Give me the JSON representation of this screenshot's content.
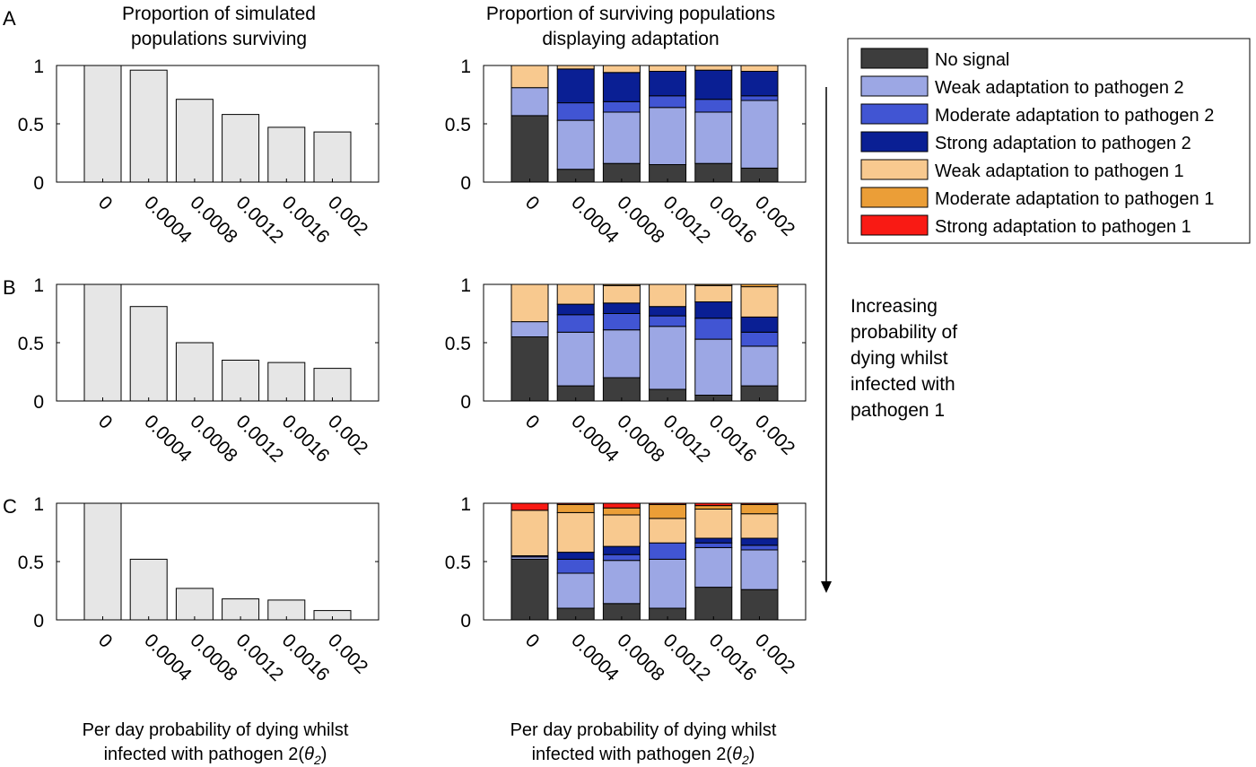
{
  "colors": {
    "survival_bar": "#e6e6e6",
    "no_signal": "#3d3d3d",
    "weak_p2": "#9ca7e4",
    "moderate_p2": "#4155d3",
    "strong_p2": "#0a1f94",
    "weak_p1": "#f8c98f",
    "moderate_p1": "#eb9e37",
    "strong_p1": "#f91a14"
  },
  "chart_data": {
    "type": "bar",
    "categories": [
      "0",
      "0.0004",
      "0.0008",
      "0.0012",
      "0.0016",
      "0.002"
    ],
    "y_ticks": [
      "0",
      "0.5",
      "1"
    ],
    "ylim": [
      0,
      1
    ],
    "column_titles": {
      "left": [
        "Proportion of simulated",
        "populations surviving"
      ],
      "right": [
        "Proportion of surviving populations",
        "displaying adaptation"
      ]
    },
    "xlabel": {
      "line1": "Per day probability of dying whilst",
      "line2_prefix": "infected with pathogen 2(",
      "symbol": "θ",
      "subscript": "2",
      "line2_suffix": ")"
    },
    "annotation": [
      "Increasing",
      "probability of",
      "dying whilst",
      "infected with",
      "pathogen 1"
    ],
    "legend": [
      {
        "label": "No signal",
        "color_key": "no_signal"
      },
      {
        "label": "Weak adaptation to pathogen 2",
        "color_key": "weak_p2"
      },
      {
        "label": "Moderate adaptation to pathogen 2",
        "color_key": "moderate_p2"
      },
      {
        "label": "Strong adaptation to pathogen 2",
        "color_key": "strong_p2"
      },
      {
        "label": "Weak adaptation to pathogen 1",
        "color_key": "weak_p1"
      },
      {
        "label": "Moderate adaptation to pathogen 1",
        "color_key": "moderate_p1"
      },
      {
        "label": "Strong adaptation to pathogen 1",
        "color_key": "strong_p1"
      }
    ],
    "stack_order": [
      "no_signal",
      "weak_p2",
      "moderate_p2",
      "strong_p2",
      "weak_p1",
      "moderate_p1",
      "strong_p1"
    ],
    "panels": [
      {
        "label": "A",
        "survival": [
          1.0,
          0.96,
          0.71,
          0.58,
          0.47,
          0.43
        ],
        "adaptation": [
          [
            0.57,
            0.24,
            0.0,
            0.0,
            0.19,
            0.0,
            0.0
          ],
          [
            0.11,
            0.42,
            0.15,
            0.29,
            0.03,
            0.0,
            0.0
          ],
          [
            0.16,
            0.44,
            0.09,
            0.25,
            0.06,
            0.0,
            0.0
          ],
          [
            0.15,
            0.49,
            0.1,
            0.21,
            0.05,
            0.0,
            0.0
          ],
          [
            0.16,
            0.44,
            0.11,
            0.25,
            0.04,
            0.0,
            0.0
          ],
          [
            0.12,
            0.58,
            0.04,
            0.21,
            0.05,
            0.0,
            0.0
          ]
        ]
      },
      {
        "label": "B",
        "survival": [
          1.0,
          0.81,
          0.5,
          0.35,
          0.33,
          0.28
        ],
        "adaptation": [
          [
            0.55,
            0.13,
            0.0,
            0.0,
            0.32,
            0.0,
            0.0
          ],
          [
            0.13,
            0.46,
            0.15,
            0.09,
            0.17,
            0.0,
            0.0
          ],
          [
            0.2,
            0.41,
            0.14,
            0.09,
            0.15,
            0.01,
            0.0
          ],
          [
            0.1,
            0.54,
            0.09,
            0.08,
            0.19,
            0.0,
            0.0
          ],
          [
            0.05,
            0.48,
            0.18,
            0.14,
            0.14,
            0.01,
            0.0
          ],
          [
            0.13,
            0.34,
            0.12,
            0.13,
            0.26,
            0.02,
            0.0
          ]
        ]
      },
      {
        "label": "C",
        "survival": [
          1.0,
          0.52,
          0.27,
          0.18,
          0.17,
          0.08
        ],
        "adaptation": [
          [
            0.52,
            0.02,
            0.0,
            0.01,
            0.39,
            0.0,
            0.06
          ],
          [
            0.1,
            0.3,
            0.12,
            0.06,
            0.34,
            0.07,
            0.01
          ],
          [
            0.14,
            0.37,
            0.05,
            0.07,
            0.27,
            0.06,
            0.04
          ],
          [
            0.1,
            0.42,
            0.14,
            0.0,
            0.21,
            0.12,
            0.01
          ],
          [
            0.28,
            0.34,
            0.04,
            0.04,
            0.25,
            0.03,
            0.02
          ],
          [
            0.26,
            0.34,
            0.04,
            0.06,
            0.21,
            0.08,
            0.01
          ]
        ]
      }
    ]
  }
}
